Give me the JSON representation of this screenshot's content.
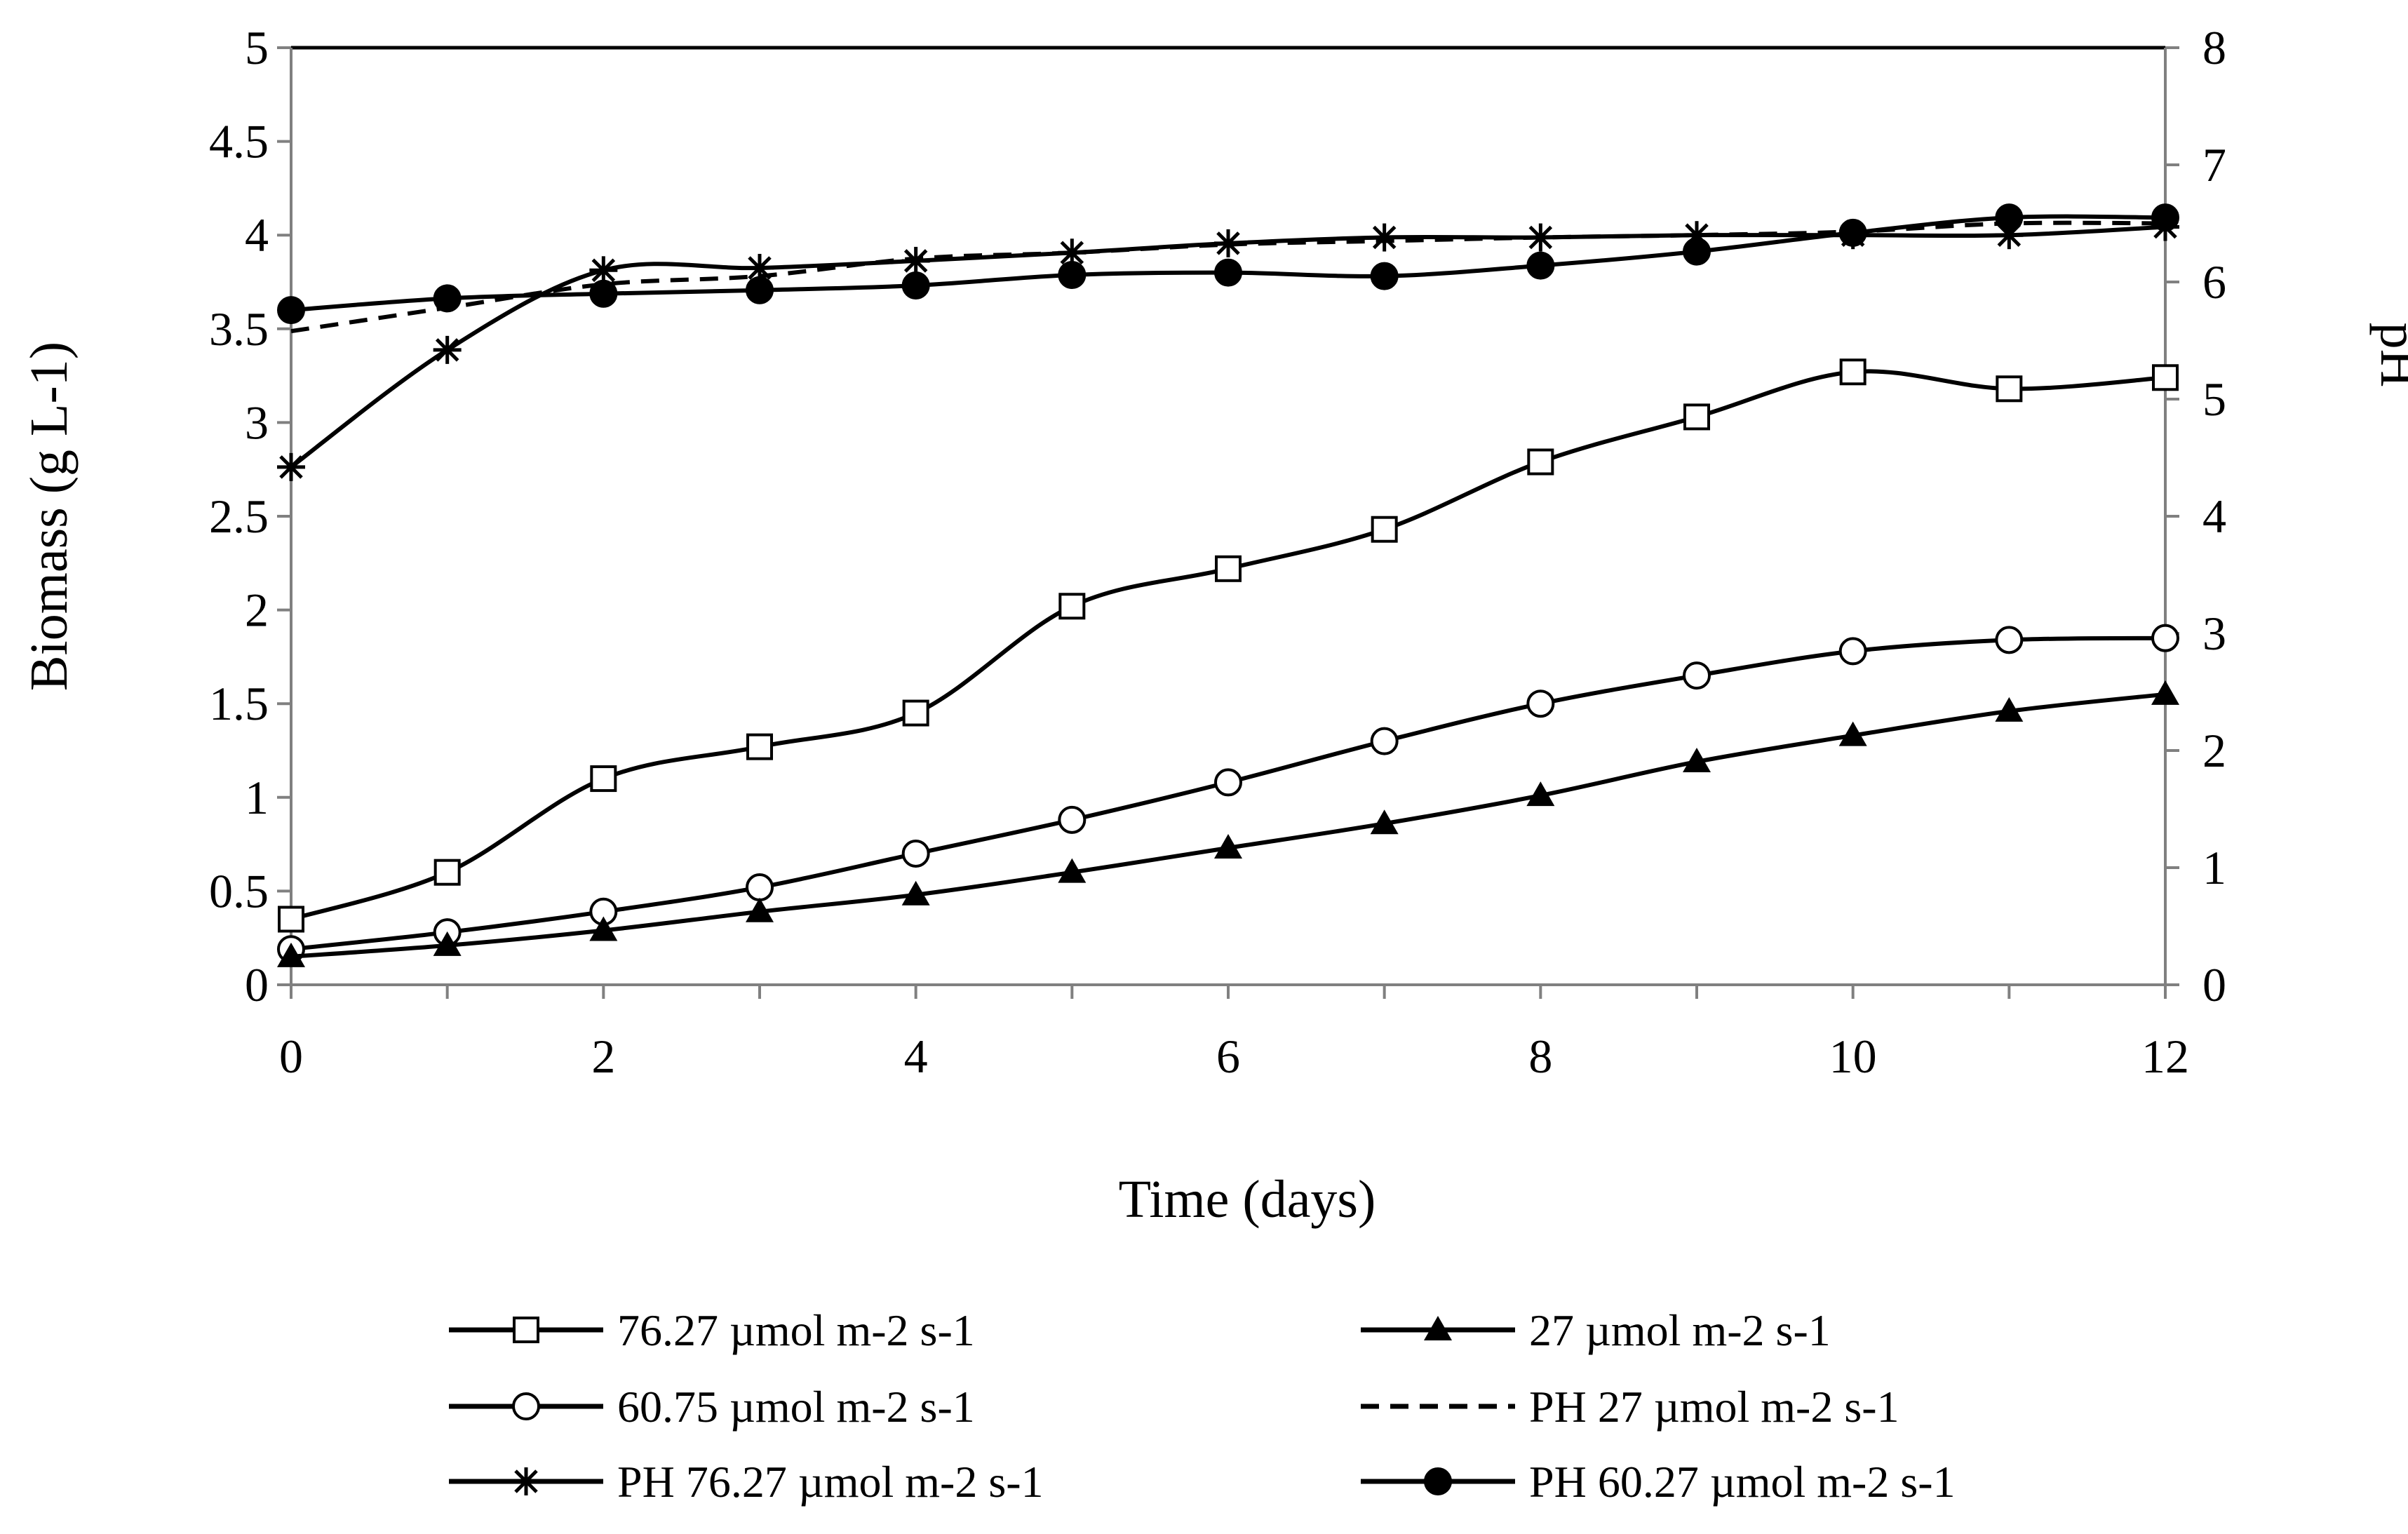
{
  "chart_data": {
    "type": "line",
    "title": "",
    "xlabel": "Time (days)",
    "ylabel": "Biomass (g L-1)",
    "y2label": "pH",
    "xlim": [
      0,
      12
    ],
    "ylim": [
      0,
      5
    ],
    "y2lim": [
      0,
      8
    ],
    "x_ticks": [
      "0",
      "2",
      "4",
      "6",
      "8",
      "10",
      "12"
    ],
    "y_ticks": [
      "0",
      "0.5",
      "1",
      "1.5",
      "2",
      "2.5",
      "3",
      "3.5",
      "4",
      "4.5",
      "5"
    ],
    "y2_ticks": [
      "0",
      "1",
      "2",
      "3",
      "4",
      "5",
      "6",
      "7",
      "8"
    ],
    "grid": false,
    "legend_position": "bottom",
    "x": [
      0,
      1,
      2,
      3,
      4,
      5,
      6,
      7,
      8,
      9,
      10,
      11,
      12
    ],
    "series": [
      {
        "name": "76.27 µmol m-2 s-1",
        "axis": "left",
        "marker": "square-open",
        "dash": "solid",
        "values": [
          0.35,
          0.6,
          1.1,
          1.27,
          1.45,
          2.02,
          2.22,
          2.43,
          2.79,
          3.03,
          3.27,
          3.18,
          3.24
        ]
      },
      {
        "name": "27 µmol m-2 s-1",
        "axis": "left",
        "marker": "triangle-filled",
        "dash": "solid",
        "values": [
          0.15,
          0.21,
          0.29,
          0.39,
          0.48,
          0.6,
          0.73,
          0.86,
          1.01,
          1.19,
          1.33,
          1.46,
          1.55
        ]
      },
      {
        "name": "60.75 µmol m-2 s-1",
        "axis": "left",
        "marker": "circle-open",
        "dash": "solid",
        "values": [
          0.19,
          0.28,
          0.39,
          0.52,
          0.7,
          0.88,
          1.08,
          1.3,
          1.5,
          1.65,
          1.78,
          1.84,
          1.85
        ]
      },
      {
        "name": "PH 27 µmol m-2 s-1",
        "axis": "right",
        "marker": "none",
        "dash": "dashed",
        "values": [
          5.58,
          5.78,
          5.98,
          6.05,
          6.2,
          6.25,
          6.32,
          6.35,
          6.38,
          6.4,
          6.43,
          6.5,
          6.5
        ]
      },
      {
        "name": "PH 76.27 µmol m-2 s-1",
        "axis": "right",
        "marker": "star",
        "dash": "solid",
        "values": [
          4.42,
          5.42,
          6.1,
          6.12,
          6.18,
          6.25,
          6.33,
          6.38,
          6.38,
          6.4,
          6.4,
          6.4,
          6.47
        ]
      },
      {
        "name": "PH 60.27 µmol m-2 s-1",
        "axis": "right",
        "marker": "circle-filled",
        "dash": "solid",
        "values": [
          5.76,
          5.86,
          5.9,
          5.93,
          5.97,
          6.06,
          6.08,
          6.05,
          6.14,
          6.26,
          6.42,
          6.55,
          6.55
        ]
      }
    ]
  }
}
